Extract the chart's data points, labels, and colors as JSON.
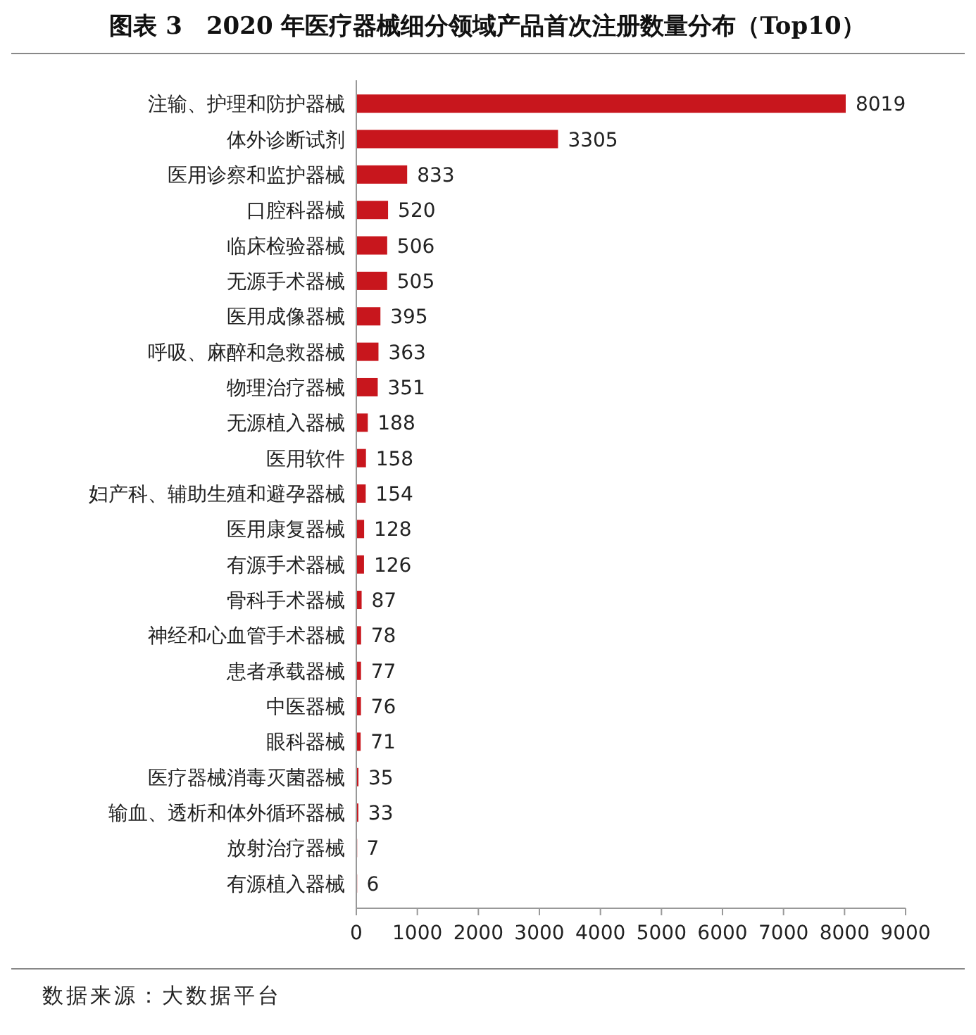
{
  "chart_data": {
    "type": "bar",
    "orientation": "horizontal",
    "title": "图表 3　2020 年医疗器械细分领域产品首次注册数量分布（Top10）",
    "categories": [
      "注输、护理和防护器械",
      "体外诊断试剂",
      "医用诊察和监护器械",
      "口腔科器械",
      "临床检验器械",
      "无源手术器械",
      "医用成像器械",
      "呼吸、麻醉和急救器械",
      "物理治疗器械",
      "无源植入器械",
      "医用软件",
      "妇产科、辅助生殖和避孕器械",
      "医用康复器械",
      "有源手术器械",
      "骨科手术器械",
      "神经和心血管手术器械",
      "患者承载器械",
      "中医器械",
      "眼科器械",
      "医疗器械消毒灭菌器械",
      "输血、透析和体外循环器械",
      "放射治疗器械",
      "有源植入器械"
    ],
    "values": [
      8019,
      3305,
      833,
      520,
      506,
      505,
      395,
      363,
      351,
      188,
      158,
      154,
      128,
      126,
      87,
      78,
      77,
      76,
      71,
      35,
      33,
      7,
      6
    ],
    "color": "#c8161d",
    "xlim": [
      0,
      9000
    ],
    "xticks": [
      0,
      1000,
      2000,
      3000,
      4000,
      5000,
      6000,
      7000,
      8000,
      9000
    ],
    "data_labels": true,
    "annotations": [
      "数据来源：大数据平台"
    ]
  }
}
